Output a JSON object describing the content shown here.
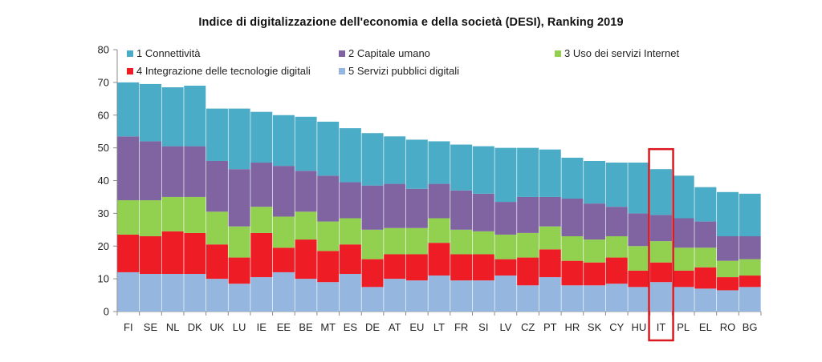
{
  "chart_data": {
    "type": "bar",
    "stacked": true,
    "title": "Indice di digitalizzazione dell'economia e della società (DESI), Ranking 2019",
    "xlabel": "",
    "ylabel": "",
    "ylim": [
      0,
      80
    ],
    "yticks": [
      0,
      10,
      20,
      30,
      40,
      50,
      60,
      70,
      80
    ],
    "grid": false,
    "legend_position": "top",
    "categories": [
      "FI",
      "SE",
      "NL",
      "DK",
      "UK",
      "LU",
      "IE",
      "EE",
      "BE",
      "MT",
      "ES",
      "DE",
      "AT",
      "EU",
      "LT",
      "FR",
      "SI",
      "LV",
      "CZ",
      "PT",
      "HR",
      "SK",
      "CY",
      "HU",
      "IT",
      "PL",
      "EL",
      "RO",
      "BG"
    ],
    "highlight_category": "IT",
    "highlight_color": "#d9181f",
    "series": [
      {
        "name": "5 Servizi pubblici digitali",
        "color": "#95b6df",
        "values": [
          12,
          11.5,
          11.5,
          11.5,
          10,
          8.5,
          10.5,
          12,
          10,
          9,
          11.5,
          7.5,
          10,
          9.5,
          11,
          9.5,
          9.5,
          11,
          8,
          10.5,
          8,
          8,
          8.5,
          7.5,
          9,
          7.5,
          7,
          6.5,
          7.5
        ]
      },
      {
        "name": "4 Integrazione delle tecnologie digitali",
        "color": "#ee1c25",
        "values": [
          11.5,
          11.5,
          13,
          12.5,
          10.5,
          8,
          13.5,
          7.5,
          12,
          9.5,
          9,
          8.5,
          7.5,
          8,
          10,
          8,
          8,
          5,
          8.5,
          8.5,
          7.5,
          7,
          8,
          5,
          6,
          5,
          6.5,
          4,
          3.5
        ]
      },
      {
        "name": "3 Uso dei servizi Internet",
        "color": "#92d050",
        "values": [
          10.5,
          11,
          10.5,
          11,
          10,
          9.5,
          8,
          9.5,
          8.5,
          9,
          8,
          9,
          8,
          8,
          7.5,
          7.5,
          7,
          7.5,
          7.5,
          7,
          7.5,
          7,
          6.5,
          7.5,
          6.5,
          7,
          6,
          5,
          5
        ]
      },
      {
        "name": "2 Capitale umano",
        "color": "#8064a2",
        "values": [
          19.5,
          18,
          15.5,
          15.5,
          15.5,
          17.5,
          13.5,
          15.5,
          12.5,
          14,
          11,
          13.5,
          13.5,
          12,
          10.5,
          12,
          11.5,
          10,
          11,
          9,
          11.5,
          11,
          9,
          10,
          8,
          9,
          8,
          7.5,
          7
        ]
      },
      {
        "name": "1 Connettività",
        "color": "#4aacc6",
        "values": [
          16.5,
          17.5,
          18,
          18.5,
          16,
          18.5,
          15.5,
          15.5,
          16.5,
          16.5,
          16.5,
          16,
          14.5,
          15,
          13,
          14,
          14.5,
          16.5,
          15,
          14.5,
          12.5,
          13,
          13.5,
          15.5,
          14,
          13,
          10.5,
          13.5,
          13
        ]
      }
    ],
    "legend_order": [
      4,
      3,
      2,
      1,
      0
    ]
  }
}
